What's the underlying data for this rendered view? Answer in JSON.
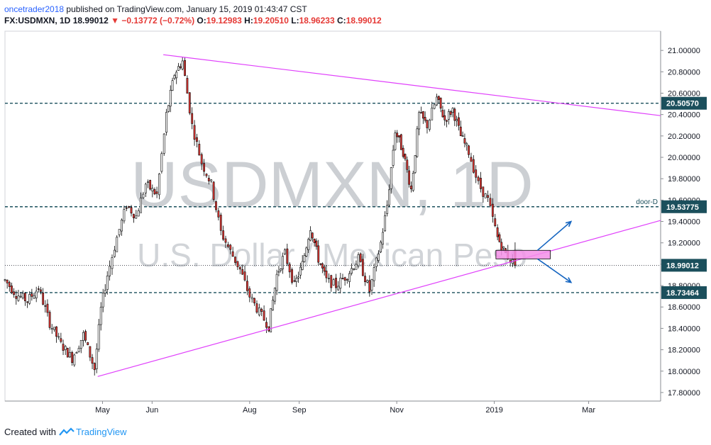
{
  "header": {
    "user": "oncetrader2018",
    "published_text": "published on TradingView.com, January 15, 2019 01:43:47 CST",
    "symbol": "FX:USDMXN, 1D",
    "last": "18.99012",
    "change": "−0.13772 (−0.72%)",
    "o_label": "O:",
    "o_value": "19.12983",
    "h_label": "H:",
    "h_value": "19.20510",
    "l_label": "L:",
    "l_value": "18.96233",
    "c_label": "C:",
    "c_value": "18.99012"
  },
  "watermark": {
    "line1": "USDMXN, 1D",
    "line2": "U.S. Dollar / Mexican Peso"
  },
  "footer": {
    "created_with": "Created with",
    "brand": "TradingView"
  },
  "colors": {
    "up": "#ffffff",
    "down": "#e53935",
    "wick": "#000000",
    "trendline": "#e040fb",
    "hline": "#1b4f5c",
    "label_bg": "#1b4f5c",
    "highlight": "#f48fe8"
  },
  "chart_data": {
    "type": "candlestick",
    "x_axis": {
      "type": "date",
      "range": [
        "2018-03-01",
        "2019-04-15"
      ],
      "ticks": [
        {
          "date": "2018-05-01",
          "label": "May"
        },
        {
          "date": "2018-06-01",
          "label": "Jun"
        },
        {
          "date": "2018-08-01",
          "label": "Aug"
        },
        {
          "date": "2018-09-01",
          "label": "Sep"
        },
        {
          "date": "2018-11-01",
          "label": "Nov"
        },
        {
          "date": "2019-01-01",
          "label": "2019"
        },
        {
          "date": "2019-03-01",
          "label": "Mar"
        }
      ]
    },
    "y_axis": {
      "range": [
        17.72,
        21.18
      ],
      "ticks": [
        "17.80000",
        "18.00000",
        "18.20000",
        "18.40000",
        "18.60000",
        "18.80000",
        "19.00000",
        "19.20000",
        "19.40000",
        "19.60000",
        "19.80000",
        "20.00000",
        "20.20000",
        "20.40000",
        "20.60000",
        "20.80000",
        "21.00000"
      ]
    },
    "series": [
      {
        "points": [
          {
            "date": "2018-03-01",
            "close": 18.85
          },
          {
            "date": "2018-03-08",
            "close": 18.72
          },
          {
            "date": "2018-03-15",
            "close": 18.66
          },
          {
            "date": "2018-03-22",
            "close": 18.78
          },
          {
            "date": "2018-03-29",
            "close": 18.45
          },
          {
            "date": "2018-04-05",
            "close": 18.25
          },
          {
            "date": "2018-04-12",
            "close": 18.12
          },
          {
            "date": "2018-04-19",
            "close": 18.34
          },
          {
            "date": "2018-04-26",
            "close": 18.02
          },
          {
            "date": "2018-04-30",
            "close": 18.58
          },
          {
            "date": "2018-05-04",
            "close": 18.9
          },
          {
            "date": "2018-05-10",
            "close": 19.25
          },
          {
            "date": "2018-05-16",
            "close": 19.55
          },
          {
            "date": "2018-05-22",
            "close": 19.45
          },
          {
            "date": "2018-05-28",
            "close": 19.75
          },
          {
            "date": "2018-06-04",
            "close": 19.65
          },
          {
            "date": "2018-06-10",
            "close": 20.4
          },
          {
            "date": "2018-06-15",
            "close": 20.78
          },
          {
            "date": "2018-06-20",
            "close": 20.9
          },
          {
            "date": "2018-06-26",
            "close": 20.3
          },
          {
            "date": "2018-07-02",
            "close": 19.95
          },
          {
            "date": "2018-07-08",
            "close": 19.75
          },
          {
            "date": "2018-07-14",
            "close": 19.3
          },
          {
            "date": "2018-07-20",
            "close": 19.12
          },
          {
            "date": "2018-07-26",
            "close": 18.95
          },
          {
            "date": "2018-08-01",
            "close": 18.7
          },
          {
            "date": "2018-08-07",
            "close": 18.55
          },
          {
            "date": "2018-08-13",
            "close": 18.42
          },
          {
            "date": "2018-08-18",
            "close": 18.9
          },
          {
            "date": "2018-08-23",
            "close": 19.1
          },
          {
            "date": "2018-08-29",
            "close": 18.8
          },
          {
            "date": "2018-09-03",
            "close": 19.0
          },
          {
            "date": "2018-09-08",
            "close": 19.35
          },
          {
            "date": "2018-09-13",
            "close": 19.05
          },
          {
            "date": "2018-09-18",
            "close": 18.85
          },
          {
            "date": "2018-09-24",
            "close": 18.8
          },
          {
            "date": "2018-10-01",
            "close": 18.9
          },
          {
            "date": "2018-10-08",
            "close": 19.05
          },
          {
            "date": "2018-10-15",
            "close": 18.75
          },
          {
            "date": "2018-10-22",
            "close": 19.2
          },
          {
            "date": "2018-10-26",
            "close": 19.55
          },
          {
            "date": "2018-10-31",
            "close": 20.25
          },
          {
            "date": "2018-11-05",
            "close": 20.05
          },
          {
            "date": "2018-11-10",
            "close": 19.7
          },
          {
            "date": "2018-11-15",
            "close": 20.4
          },
          {
            "date": "2018-11-20",
            "close": 20.3
          },
          {
            "date": "2018-11-26",
            "close": 20.55
          },
          {
            "date": "2018-12-01",
            "close": 20.35
          },
          {
            "date": "2018-12-06",
            "close": 20.45
          },
          {
            "date": "2018-12-11",
            "close": 20.2
          },
          {
            "date": "2018-12-16",
            "close": 20.05
          },
          {
            "date": "2018-12-22",
            "close": 19.75
          },
          {
            "date": "2018-12-28",
            "close": 19.6
          },
          {
            "date": "2019-01-03",
            "close": 19.25
          },
          {
            "date": "2019-01-08",
            "close": 19.1
          },
          {
            "date": "2019-01-14",
            "close": 18.99
          }
        ]
      }
    ],
    "horizontal_levels": [
      {
        "value": 20.5057,
        "label": "20.50570"
      },
      {
        "value": 19.53775,
        "label": "19.53775",
        "note": "door-D"
      },
      {
        "value": 18.73464,
        "label": "18.73464"
      }
    ],
    "last_price": {
      "value": 18.99012,
      "label": "18.99012"
    },
    "trendlines": [
      {
        "from": {
          "date": "2018-06-08",
          "value": 20.96
        },
        "to": {
          "date": "2019-04-15",
          "value": 20.39
        }
      },
      {
        "from": {
          "date": "2018-04-28",
          "value": 17.95
        },
        "to": {
          "date": "2019-04-15",
          "value": 19.41
        }
      }
    ],
    "annotations": {
      "box": {
        "from_date": "2019-01-02",
        "to_date": "2019-02-05",
        "top": 19.13,
        "bottom": 19.05
      },
      "arrows": [
        {
          "from": {
            "date": "2019-01-28",
            "value": 19.13
          },
          "to": {
            "date": "2019-02-18",
            "value": 19.4
          }
        },
        {
          "from": {
            "date": "2019-01-28",
            "value": 19.05
          },
          "to": {
            "date": "2019-02-18",
            "value": 18.83
          }
        }
      ]
    },
    "grid": false
  }
}
